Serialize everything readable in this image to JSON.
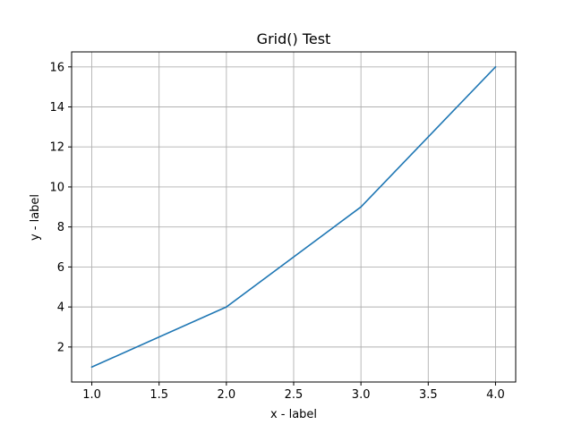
{
  "chart_data": {
    "type": "line",
    "title": "Grid() Test",
    "xlabel": "x - label",
    "ylabel": "y - label",
    "x": [
      1.0,
      2.0,
      3.0,
      4.0
    ],
    "series": [
      {
        "values": [
          1,
          4,
          9,
          16
        ]
      }
    ],
    "xlim": [
      0.85,
      4.15
    ],
    "ylim": [
      0.25,
      16.75
    ],
    "xticks": [
      1.0,
      1.5,
      2.0,
      2.5,
      3.0,
      3.5,
      4.0
    ],
    "xtick_labels": [
      "1.0",
      "1.5",
      "2.0",
      "2.5",
      "3.0",
      "3.5",
      "4.0"
    ],
    "yticks": [
      2,
      4,
      6,
      8,
      10,
      12,
      14,
      16
    ],
    "ytick_labels": [
      "2",
      "4",
      "6",
      "8",
      "10",
      "12",
      "14",
      "16"
    ],
    "grid": true,
    "colors": {
      "line": "#1f77b4",
      "grid": "#b0b0b0"
    }
  }
}
